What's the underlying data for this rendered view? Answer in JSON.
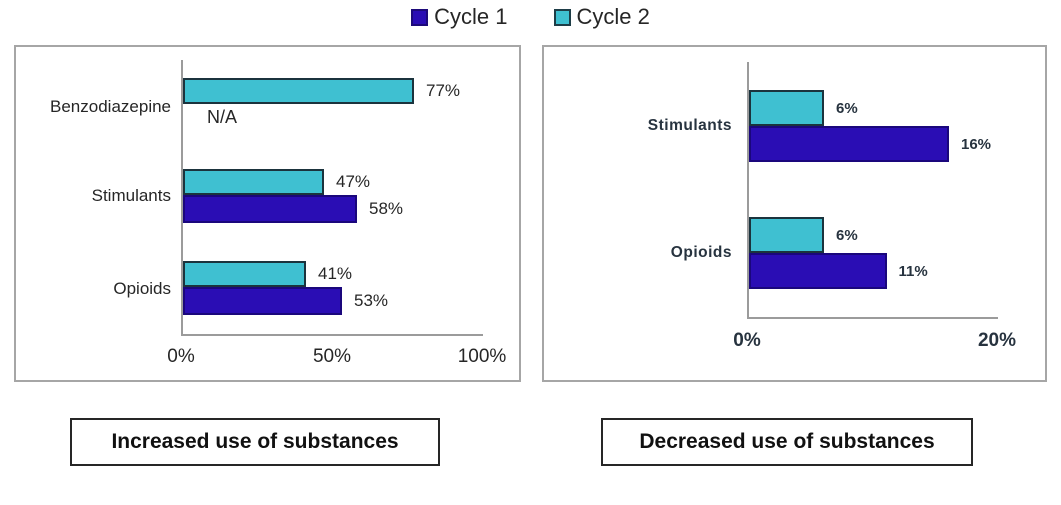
{
  "chart_data": [
    {
      "type": "bar",
      "orientation": "horizontal",
      "title": "Increased use of substances",
      "categories": [
        "Benzodiazepine",
        "Stimulants",
        "Opioids"
      ],
      "series": [
        {
          "name": "Cycle 1",
          "color": "#2a0db4",
          "values": [
            null,
            58,
            53
          ],
          "labels": [
            "N/A",
            "58%",
            "53%"
          ]
        },
        {
          "name": "Cycle 2",
          "color": "#3fc0d1",
          "values": [
            77,
            47,
            41
          ],
          "labels": [
            "77%",
            "47%",
            "41%"
          ]
        }
      ],
      "xlim": [
        0,
        100
      ],
      "xticks": [
        "0%",
        "50%",
        "100%"
      ],
      "grid": false,
      "legend_position": "top-center"
    },
    {
      "type": "bar",
      "orientation": "horizontal",
      "title": "Decreased use of substances",
      "categories": [
        "Stimulants",
        "Opioids"
      ],
      "series": [
        {
          "name": "Cycle 1",
          "color": "#2a0db4",
          "values": [
            16,
            11
          ],
          "labels": [
            "16%",
            "11%"
          ]
        },
        {
          "name": "Cycle 2",
          "color": "#3fc0d1",
          "values": [
            6,
            6
          ],
          "labels": [
            "6%",
            "6%"
          ]
        }
      ],
      "xlim": [
        0,
        20
      ],
      "xticks": [
        "0%",
        "20%"
      ],
      "grid": false,
      "legend_position": "top-center"
    }
  ]
}
